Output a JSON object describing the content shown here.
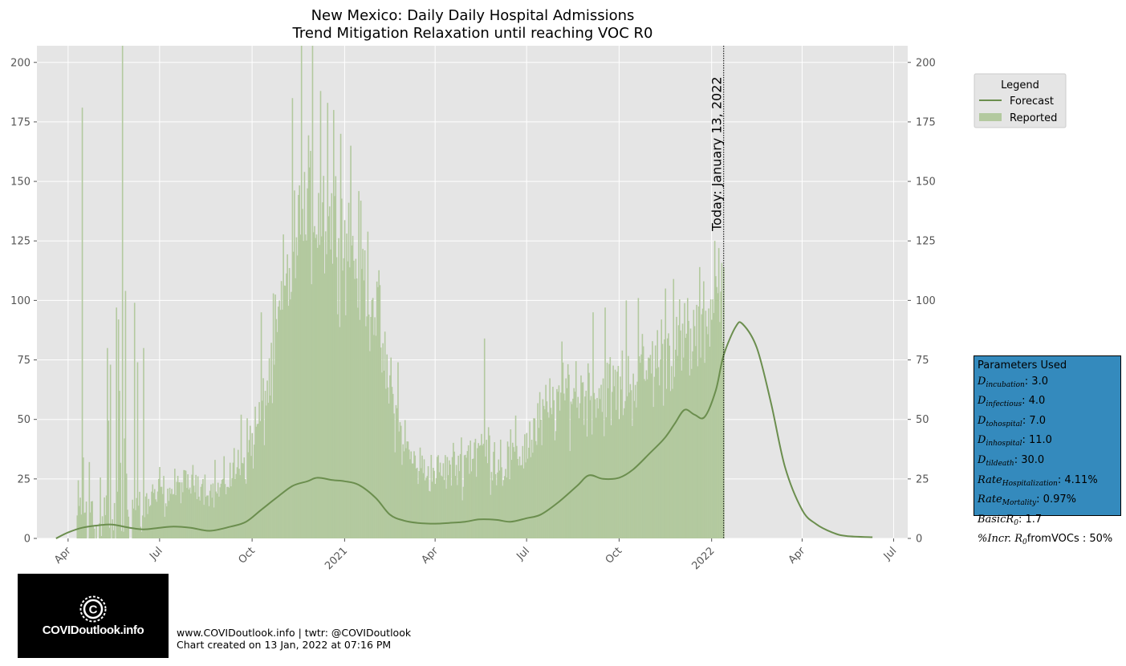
{
  "chart_data": {
    "type": "bar",
    "title": "New Mexico: Daily Daily Hospital Admissions",
    "subtitle": "Trend Mitigation Relaxation until reaching VOC R0",
    "xlabel": "",
    "ylabel": "",
    "ylim": [
      0,
      207
    ],
    "xlim": [
      "2020-03-01",
      "2022-07-15"
    ],
    "y_ticks": [
      0,
      25,
      50,
      75,
      100,
      125,
      150,
      175,
      200
    ],
    "x_ticks": [
      {
        "date": "2020-04-01",
        "label": "Apr"
      },
      {
        "date": "2020-07-01",
        "label": "Jul"
      },
      {
        "date": "2020-10-01",
        "label": "Oct"
      },
      {
        "date": "2021-01-01",
        "label": "2021"
      },
      {
        "date": "2021-04-01",
        "label": "Apr"
      },
      {
        "date": "2021-07-01",
        "label": "Jul"
      },
      {
        "date": "2021-10-01",
        "label": "Oct"
      },
      {
        "date": "2022-01-01",
        "label": "2022"
      },
      {
        "date": "2022-04-01",
        "label": "Apr"
      },
      {
        "date": "2022-07-01",
        "label": "Jul"
      }
    ],
    "grid": true,
    "legend": {
      "title": "Legend",
      "placement": "upper right, outside plot",
      "entries": [
        {
          "label": "Forecast",
          "kind": "line",
          "color": "#6b8e4e"
        },
        {
          "label": "Reported",
          "kind": "bar",
          "color": "#b3c99f"
        }
      ]
    },
    "annotation": {
      "date": "2022-01-13",
      "text": "Today: January 13, 2022"
    },
    "series": [
      {
        "name": "Reported",
        "kind": "bar",
        "color": "#b3c99f",
        "start_date": "2020-04-10",
        "end_date": "2022-01-13",
        "anchors": [
          [
            "2020-04-10",
            8,
            20
          ],
          [
            "2020-04-25",
            10,
            40
          ],
          [
            "2020-05-10",
            8,
            60
          ],
          [
            "2020-05-25",
            8,
            45
          ],
          [
            "2020-06-05",
            10,
            25
          ],
          [
            "2020-06-20",
            14,
            12
          ],
          [
            "2020-07-05",
            18,
            10
          ],
          [
            "2020-07-20",
            22,
            8
          ],
          [
            "2020-08-10",
            24,
            8
          ],
          [
            "2020-08-25",
            18,
            8
          ],
          [
            "2020-09-05",
            24,
            10
          ],
          [
            "2020-09-20",
            32,
            14
          ],
          [
            "2020-10-05",
            45,
            18
          ],
          [
            "2020-10-20",
            70,
            25
          ],
          [
            "2020-11-01",
            100,
            30
          ],
          [
            "2020-11-15",
            125,
            30
          ],
          [
            "2020-12-01",
            140,
            35
          ],
          [
            "2020-12-15",
            135,
            32
          ],
          [
            "2021-01-01",
            125,
            30
          ],
          [
            "2021-01-15",
            115,
            30
          ],
          [
            "2021-02-01",
            100,
            28
          ],
          [
            "2021-02-10",
            70,
            18
          ],
          [
            "2021-02-25",
            45,
            16
          ],
          [
            "2021-03-10",
            32,
            12
          ],
          [
            "2021-03-25",
            28,
            10
          ],
          [
            "2021-04-10",
            28,
            10
          ],
          [
            "2021-04-25",
            32,
            14
          ],
          [
            "2021-05-10",
            38,
            18
          ],
          [
            "2021-05-25",
            36,
            16
          ],
          [
            "2021-06-10",
            32,
            16
          ],
          [
            "2021-06-25",
            36,
            16
          ],
          [
            "2021-07-10",
            45,
            16
          ],
          [
            "2021-07-25",
            55,
            18
          ],
          [
            "2021-08-10",
            62,
            22
          ],
          [
            "2021-08-25",
            62,
            20
          ],
          [
            "2021-09-10",
            60,
            18
          ],
          [
            "2021-09-25",
            62,
            20
          ],
          [
            "2021-10-10",
            64,
            20
          ],
          [
            "2021-10-25",
            70,
            20
          ],
          [
            "2021-11-10",
            75,
            22
          ],
          [
            "2021-11-25",
            82,
            22
          ],
          [
            "2021-12-10",
            80,
            22
          ],
          [
            "2021-12-25",
            92,
            22
          ],
          [
            "2022-01-13",
            105,
            20
          ]
        ],
        "outliers": [
          [
            "2020-04-15",
            181
          ],
          [
            "2020-04-16",
            34
          ],
          [
            "2020-05-10",
            80
          ],
          [
            "2020-05-13",
            73
          ],
          [
            "2020-05-19",
            97
          ],
          [
            "2020-05-21",
            92
          ],
          [
            "2020-05-22",
            62
          ],
          [
            "2020-05-25",
            207
          ],
          [
            "2020-05-27",
            42
          ],
          [
            "2020-05-28",
            104
          ],
          [
            "2020-06-06",
            99
          ],
          [
            "2020-06-09",
            74
          ],
          [
            "2020-06-15",
            80
          ],
          [
            "2020-07-01",
            30
          ],
          [
            "2020-08-25",
            33
          ],
          [
            "2020-09-20",
            52
          ],
          [
            "2020-10-10",
            95
          ],
          [
            "2020-11-10",
            185
          ],
          [
            "2020-11-19",
            207
          ],
          [
            "2020-11-30",
            207
          ],
          [
            "2020-12-08",
            188
          ],
          [
            "2020-12-15",
            183
          ],
          [
            "2020-12-21",
            180
          ],
          [
            "2020-12-28",
            170
          ],
          [
            "2021-01-07",
            165
          ],
          [
            "2021-02-16",
            76
          ],
          [
            "2021-02-23",
            74
          ],
          [
            "2021-05-20",
            84
          ],
          [
            "2021-09-05",
            95
          ],
          [
            "2021-09-17",
            97
          ],
          [
            "2021-10-08",
            100
          ],
          [
            "2021-10-20",
            101
          ],
          [
            "2021-11-16",
            105
          ],
          [
            "2021-11-24",
            109
          ],
          [
            "2021-12-08",
            101
          ],
          [
            "2021-12-20",
            114
          ],
          [
            "2022-01-04",
            125
          ],
          [
            "2022-01-08",
            122
          ]
        ]
      },
      {
        "name": "Forecast",
        "kind": "line",
        "color": "#6b8e4e",
        "points": [
          [
            "2020-03-20",
            0
          ],
          [
            "2020-04-01",
            2.5
          ],
          [
            "2020-04-15",
            4.5
          ],
          [
            "2020-05-01",
            5.5
          ],
          [
            "2020-05-15",
            5.8
          ],
          [
            "2020-06-01",
            4.5
          ],
          [
            "2020-06-15",
            3.8
          ],
          [
            "2020-07-01",
            4.5
          ],
          [
            "2020-07-15",
            5
          ],
          [
            "2020-08-01",
            4.5
          ],
          [
            "2020-08-20",
            3.2
          ],
          [
            "2020-09-10",
            5
          ],
          [
            "2020-09-25",
            7
          ],
          [
            "2020-10-10",
            12
          ],
          [
            "2020-10-25",
            17
          ],
          [
            "2020-11-10",
            22
          ],
          [
            "2020-11-25",
            24
          ],
          [
            "2020-12-05",
            25.5
          ],
          [
            "2020-12-20",
            24.5
          ],
          [
            "2021-01-01",
            24
          ],
          [
            "2021-01-15",
            22.5
          ],
          [
            "2021-02-01",
            17
          ],
          [
            "2021-02-15",
            10
          ],
          [
            "2021-03-01",
            7.5
          ],
          [
            "2021-03-15",
            6.5
          ],
          [
            "2021-04-01",
            6.2
          ],
          [
            "2021-04-15",
            6.5
          ],
          [
            "2021-05-01",
            7
          ],
          [
            "2021-05-15",
            8
          ],
          [
            "2021-06-01",
            7.8
          ],
          [
            "2021-06-15",
            7
          ],
          [
            "2021-07-01",
            8.5
          ],
          [
            "2021-07-15",
            10
          ],
          [
            "2021-08-01",
            15
          ],
          [
            "2021-08-20",
            22
          ],
          [
            "2021-09-01",
            26.5
          ],
          [
            "2021-09-15",
            25
          ],
          [
            "2021-10-01",
            25.5
          ],
          [
            "2021-10-15",
            29
          ],
          [
            "2021-11-01",
            36
          ],
          [
            "2021-11-15",
            42
          ],
          [
            "2021-11-25",
            48
          ],
          [
            "2021-12-05",
            54
          ],
          [
            "2021-12-15",
            52
          ],
          [
            "2021-12-25",
            51
          ],
          [
            "2022-01-05",
            62
          ],
          [
            "2022-01-13",
            77
          ],
          [
            "2022-01-25",
            89
          ],
          [
            "2022-02-01",
            90
          ],
          [
            "2022-02-15",
            80
          ],
          [
            "2022-03-01",
            57
          ],
          [
            "2022-03-15",
            30
          ],
          [
            "2022-04-01",
            12
          ],
          [
            "2022-04-15",
            6
          ],
          [
            "2022-05-01",
            2.5
          ],
          [
            "2022-05-15",
            1
          ],
          [
            "2022-06-10",
            0.5
          ]
        ]
      }
    ]
  },
  "parameters": {
    "title": "Parameters Used",
    "rows": [
      {
        "sym": "D",
        "sub": "incubation",
        "value": ": 3.0"
      },
      {
        "sym": "D",
        "sub": "infectious",
        "value": ": 4.0"
      },
      {
        "sym": "D",
        "sub": "tohospital",
        "value": ": 7.0"
      },
      {
        "sym": "D",
        "sub": "inhospital",
        "value": ": 11.0"
      },
      {
        "sym": "D",
        "sub": "tildeath",
        "value": ": 30.0"
      },
      {
        "sym": "Rate",
        "sub": "Hospitalization",
        "value": ": 4.11%"
      },
      {
        "sym": "Rate",
        "sub": "Mortality",
        "value": ": 0.97%"
      },
      {
        "sym": "BasicR",
        "sub": "0",
        "value": ": 1.7"
      },
      {
        "sym": "%Incr. R",
        "sub": "0",
        "value": "fromVOCs : 50%"
      }
    ],
    "background": "#348abd"
  },
  "logo": {
    "text": "COVIDoutlook.info"
  },
  "footer": {
    "line1": "www.COVIDoutlook.info | twtr: @COVIDoutlook",
    "line2": "Chart created on 13 Jan, 2022 at 07:16 PM"
  }
}
